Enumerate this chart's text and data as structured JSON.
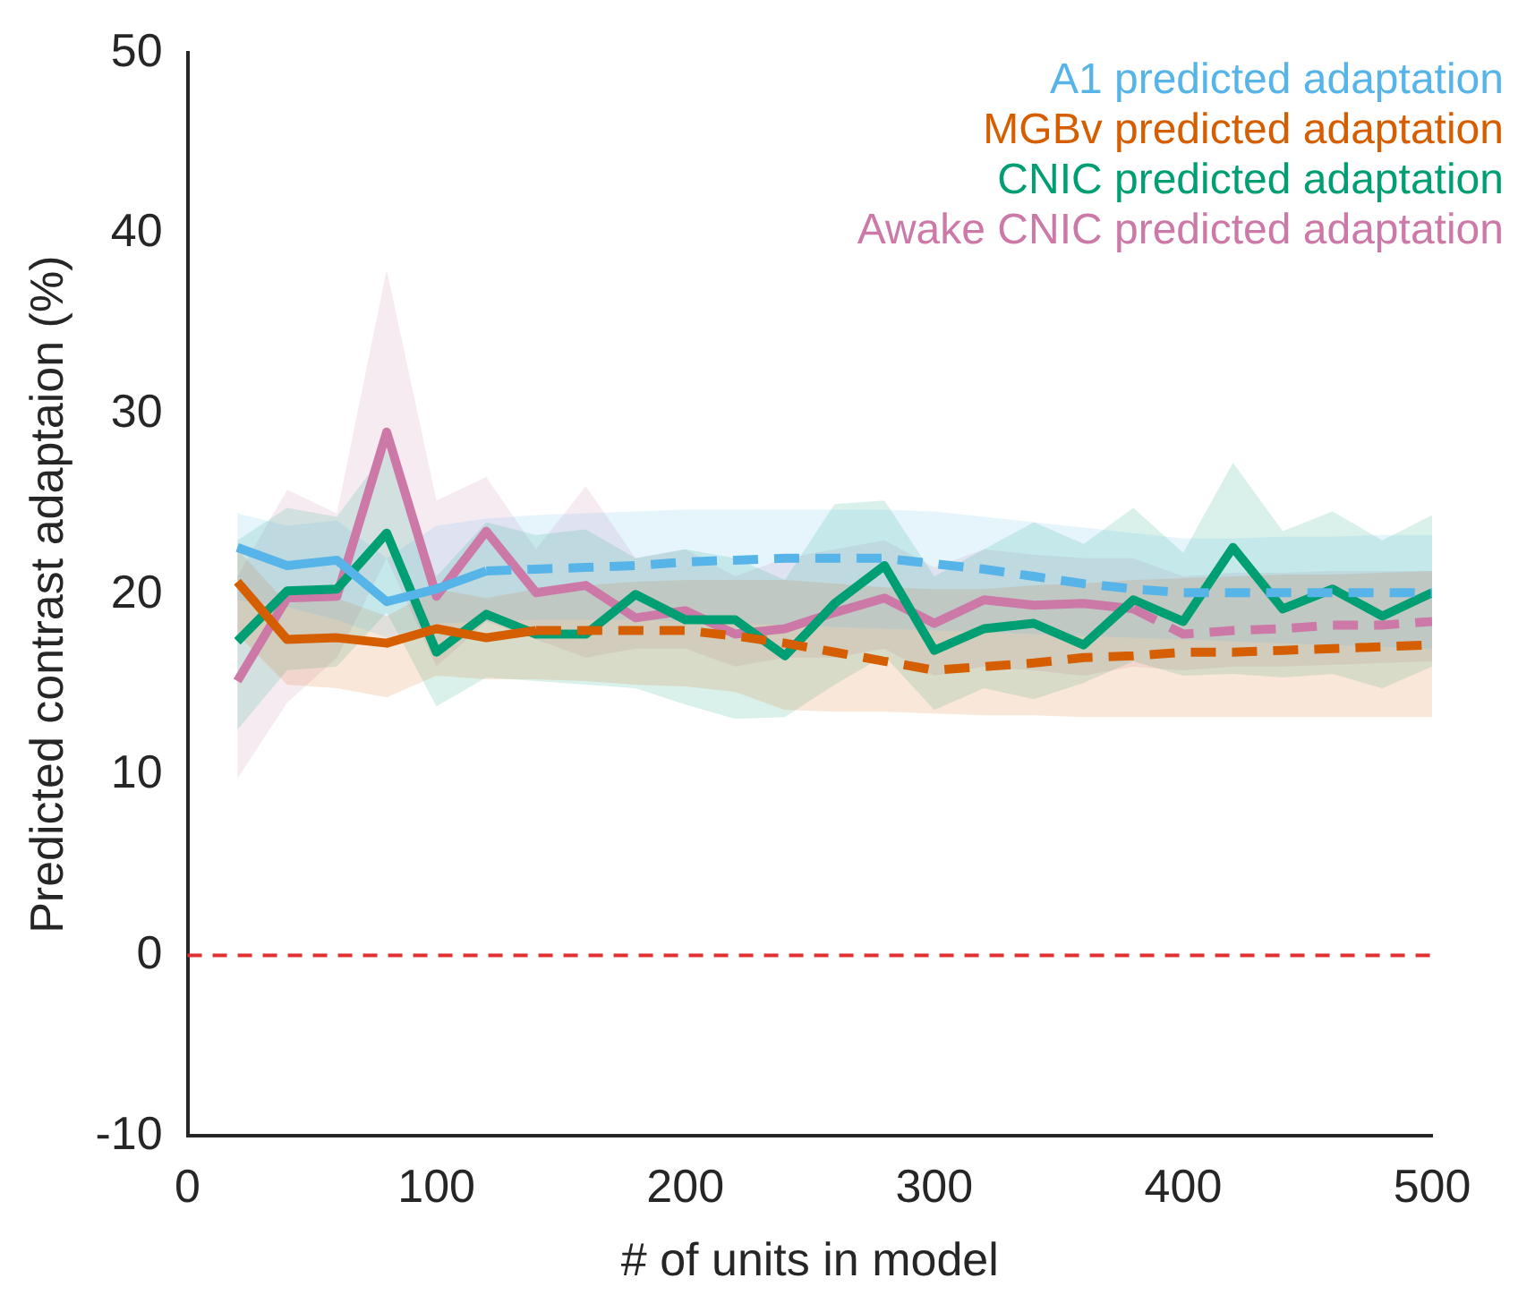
{
  "chart_data": {
    "type": "line",
    "xlabel": "# of units in model",
    "ylabel": "Predicted contrast adaptaion (%)",
    "x": [
      20,
      40,
      60,
      80,
      100,
      120,
      140,
      160,
      180,
      200,
      220,
      240,
      260,
      280,
      300,
      320,
      340,
      360,
      380,
      400,
      420,
      440,
      460,
      480,
      500
    ],
    "xlim": [
      0,
      500
    ],
    "xticks": [
      0,
      100,
      200,
      300,
      400,
      500
    ],
    "ylim": [
      -10,
      50
    ],
    "yticks": [
      -10,
      0,
      10,
      20,
      30,
      40,
      50
    ],
    "grid": false,
    "legend": "top right",
    "marker": "none",
    "ref_lines": [
      {
        "axis": "y",
        "value": 0,
        "color": "#e03030",
        "line_style": "dashed"
      }
    ],
    "series": [
      {
        "name": "A1 predicted adaptation",
        "color": "#56b4e9",
        "line_style": "solid",
        "values": [
          22.6,
          21.6,
          21.9,
          19.6,
          20.3,
          21.3,
          null,
          null,
          null,
          null,
          null,
          null,
          null,
          null,
          null,
          null,
          null,
          null,
          null,
          null,
          null,
          null,
          null,
          null,
          null
        ],
        "lower": [
          19.7,
          19.3,
          18.6,
          17.6,
          18.4,
          18.5,
          18.6,
          18.6,
          18.6,
          18.5,
          18.4,
          18.3,
          18.2,
          18.1,
          18.0,
          17.9,
          17.8,
          17.7,
          17.6,
          17.5,
          17.4,
          17.3,
          17.2,
          17.1,
          17.0
        ],
        "upper": [
          24.5,
          23.8,
          24.1,
          22.0,
          23.8,
          24.2,
          24.4,
          24.5,
          24.6,
          24.7,
          24.7,
          24.7,
          24.7,
          24.7,
          24.6,
          24.3,
          24.0,
          23.7,
          23.4,
          23.1,
          23.1,
          23.2,
          23.2,
          23.3,
          23.3
        ]
      },
      {
        "color": "#56b4e9",
        "line_style": "dashed",
        "values": [
          null,
          null,
          null,
          null,
          null,
          21.3,
          21.4,
          21.5,
          21.6,
          21.8,
          21.9,
          22.0,
          22.0,
          22.0,
          21.7,
          21.4,
          21.0,
          20.6,
          20.3,
          20.1,
          20.1,
          20.1,
          20.1,
          20.1,
          20.1
        ]
      },
      {
        "name": "MGBv predicted adaptation",
        "color": "#d55e00",
        "line_style": "solid",
        "values": [
          20.7,
          17.5,
          17.6,
          17.3,
          18.1,
          17.6,
          18.0,
          null,
          null,
          null,
          null,
          null,
          null,
          null,
          null,
          null,
          null,
          null,
          null,
          null,
          null,
          null,
          null,
          null,
          null
        ],
        "lower": [
          17.8,
          15.0,
          14.8,
          14.3,
          15.5,
          15.3,
          15.3,
          15.2,
          15.0,
          14.9,
          14.6,
          13.6,
          13.5,
          13.5,
          13.4,
          13.3,
          13.3,
          13.2,
          13.2,
          13.2,
          13.2,
          13.2,
          13.2,
          13.2,
          13.2
        ],
        "upper": [
          22.5,
          19.5,
          19.8,
          18.8,
          20.3,
          19.8,
          20.3,
          20.5,
          20.7,
          20.8,
          20.8,
          20.8,
          20.6,
          20.4,
          20.3,
          20.3,
          20.5,
          20.6,
          20.8,
          20.9,
          21.0,
          21.1,
          21.1,
          21.2,
          21.3
        ]
      },
      {
        "color": "#d55e00",
        "line_style": "dashed",
        "values": [
          null,
          null,
          null,
          null,
          null,
          null,
          18.0,
          18.0,
          18.0,
          18.0,
          17.7,
          17.3,
          16.8,
          16.3,
          15.8,
          16.0,
          16.2,
          16.5,
          16.6,
          16.8,
          16.8,
          16.9,
          17.0,
          17.1,
          17.2
        ]
      },
      {
        "name": "CNIC predicted adaptation",
        "color": "#009e73",
        "line_style": "solid",
        "values": [
          17.4,
          20.2,
          20.3,
          23.4,
          16.8,
          18.9,
          17.8,
          17.8,
          20.0,
          18.6,
          18.6,
          16.6,
          19.5,
          21.6,
          16.9,
          18.1,
          18.4,
          17.2,
          19.7,
          18.5,
          22.6,
          19.2,
          20.3,
          18.8,
          20.1
        ],
        "lower": [
          12.5,
          15.8,
          16.0,
          19.0,
          13.8,
          15.4,
          15.2,
          15.0,
          14.8,
          13.9,
          13.1,
          13.2,
          15.0,
          16.6,
          13.6,
          14.8,
          14.2,
          15.1,
          16.3,
          15.5,
          15.6,
          15.4,
          15.6,
          14.8,
          16.0
        ],
        "upper": [
          23.0,
          24.8,
          24.3,
          28.0,
          21.0,
          24.0,
          23.3,
          23.6,
          22.0,
          22.5,
          22.0,
          20.8,
          25.0,
          25.2,
          21.0,
          22.5,
          24.0,
          22.8,
          24.8,
          22.3,
          27.3,
          23.5,
          24.6,
          23.0,
          24.4
        ]
      },
      {
        "name": "Awake CNIC predicted adaptation",
        "color": "#cc79a7",
        "line_style": "solid",
        "values": [
          15.2,
          19.8,
          19.9,
          29.0,
          19.9,
          23.5,
          20.1,
          20.5,
          18.7,
          19.1,
          17.8,
          18.1,
          19.0,
          19.8,
          18.4,
          19.7,
          19.4,
          19.5,
          19.2,
          null,
          null,
          null,
          null,
          null,
          null
        ],
        "lower": [
          9.8,
          14.0,
          16.5,
          22.0,
          16.0,
          18.5,
          17.5,
          16.5,
          17.0,
          17.0,
          16.0,
          16.5,
          16.5,
          17.0,
          15.5,
          16.0,
          15.8,
          15.5,
          16.0,
          15.8,
          16.0,
          16.0,
          16.1,
          16.2,
          16.3
        ],
        "upper": [
          21.0,
          25.8,
          24.5,
          38.0,
          25.2,
          26.5,
          22.5,
          26.0,
          22.0,
          22.5,
          21.0,
          22.0,
          22.5,
          23.0,
          21.5,
          22.5,
          22.2,
          22.0,
          22.0,
          21.0,
          21.2,
          21.2,
          21.3,
          21.3,
          21.3
        ]
      },
      {
        "color": "#cc79a7",
        "line_style": "dashed",
        "values": [
          null,
          null,
          null,
          null,
          null,
          null,
          null,
          null,
          null,
          null,
          null,
          null,
          null,
          null,
          null,
          null,
          null,
          null,
          19.2,
          17.8,
          18.0,
          18.1,
          18.3,
          18.3,
          18.5
        ]
      }
    ]
  }
}
